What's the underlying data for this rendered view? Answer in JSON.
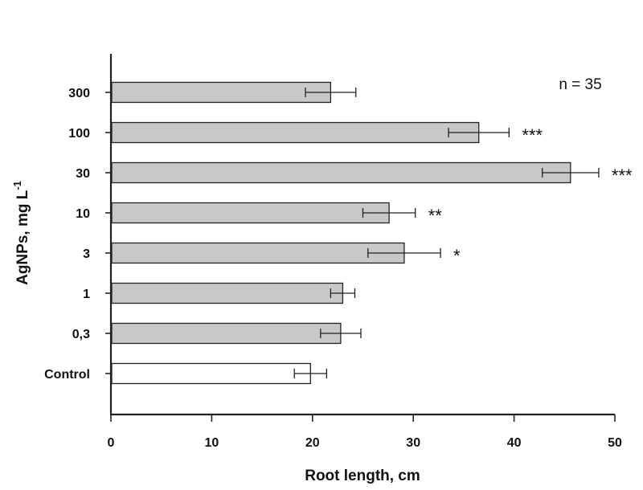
{
  "chart_data": {
    "type": "bar",
    "orientation": "horizontal",
    "categories": [
      "Control",
      "0,3",
      "1",
      "3",
      "10",
      "30",
      "100",
      "300"
    ],
    "values": [
      19.8,
      22.8,
      23.0,
      29.1,
      27.6,
      45.6,
      36.5,
      21.8
    ],
    "errors": [
      1.6,
      2.0,
      1.2,
      3.6,
      2.6,
      2.8,
      3.0,
      2.5
    ],
    "significance": [
      "",
      "",
      "",
      "*",
      "**",
      "***",
      "***",
      ""
    ],
    "bar_colors": [
      "#ffffff",
      "#c8c8c8",
      "#c8c8c8",
      "#c8c8c8",
      "#c8c8c8",
      "#c8c8c8",
      "#c8c8c8",
      "#c8c8c8"
    ],
    "xlabel": "Root length, cm",
    "ylabel": "AgNPs, mg L",
    "ylabel_superscript": "-1",
    "xlim": [
      0,
      50
    ],
    "xticks": [
      0,
      10,
      20,
      30,
      40,
      50
    ],
    "annotation": "n = 35",
    "grid": false,
    "legend": "none"
  }
}
